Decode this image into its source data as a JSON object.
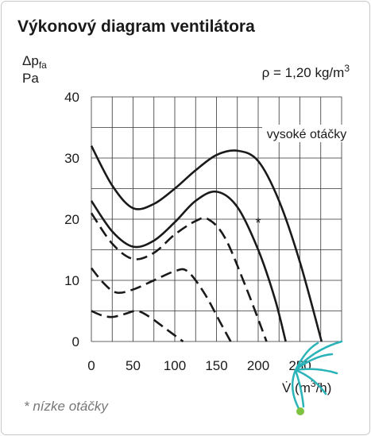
{
  "chart_data": {
    "type": "line",
    "title": "Výkonový diagram ventilátora",
    "y_label": {
      "symbol": "Δp",
      "subscript": "fa",
      "unit": "Pa"
    },
    "x_label": {
      "text": "V̇ (m",
      "superscript": "3",
      "end": "/h)"
    },
    "density": {
      "text": "ρ = 1,20 kg/m",
      "superscript": "3"
    },
    "annotations": [
      {
        "text": "vysoké otáčky"
      },
      {
        "text": "*",
        "x": 200,
        "y": 19.9
      }
    ],
    "footnote": "* nízke otáčky",
    "xlim": [
      0,
      300
    ],
    "ylim": [
      0,
      40
    ],
    "xticks": [
      0,
      50,
      100,
      150,
      200,
      250
    ],
    "yticks": [
      0,
      10,
      20,
      30,
      40
    ],
    "grid": true,
    "series": [
      {
        "color": "#1a1a1a",
        "dashed": false,
        "x": [
          0,
          25,
          50,
          75,
          100,
          125,
          150,
          175,
          200,
          225,
          250,
          276
        ],
        "values": [
          32,
          25.5,
          21.8,
          22.5,
          25,
          28,
          30.5,
          31.2,
          29.5,
          23,
          13,
          0
        ]
      },
      {
        "color": "#1a1a1a",
        "dashed": false,
        "x": [
          0,
          25,
          50,
          75,
          100,
          125,
          150,
          175,
          200,
          220,
          233
        ],
        "values": [
          23,
          18,
          15.5,
          16.5,
          19.5,
          23,
          24.5,
          22,
          15,
          7,
          0
        ]
      },
      {
        "color": "#1a1a1a",
        "dashed": true,
        "x": [
          0,
          25,
          50,
          75,
          100,
          125,
          140,
          160,
          185,
          210
        ],
        "values": [
          21,
          16,
          13.5,
          14.5,
          17.5,
          19.7,
          20,
          17,
          9,
          0
        ]
      },
      {
        "color": "#1a1a1a",
        "dashed": true,
        "x": [
          0,
          15,
          30,
          50,
          75,
          100,
          115,
          135,
          155,
          167
        ],
        "values": [
          12,
          9.5,
          8,
          8.5,
          10,
          11.5,
          11.5,
          8,
          3,
          0
        ]
      },
      {
        "color": "#1a1a1a",
        "dashed": true,
        "x": [
          0,
          12,
          25,
          40,
          55,
          70,
          90,
          110
        ],
        "values": [
          5,
          4.3,
          4,
          4.5,
          5,
          4,
          2,
          0
        ]
      }
    ]
  }
}
